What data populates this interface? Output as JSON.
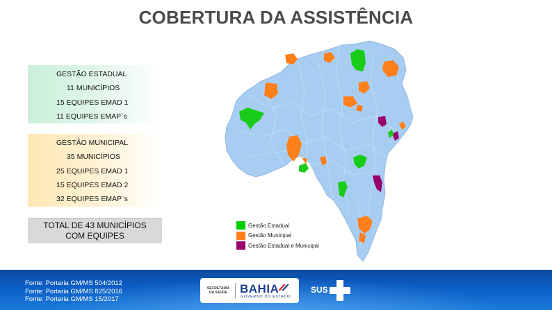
{
  "title": "COBERTURA DA ASSISTÊNCIA",
  "state_box": {
    "heading": "GESTÃO ESTADUAL",
    "lines": [
      "11 MUNICÍPIOS",
      "15 EQUIPES EMAD 1",
      "11 EQUIPES EMAP`s"
    ]
  },
  "municipal_box": {
    "heading": "GESTÃO MUNICIPAL",
    "lines": [
      "35 MUNICÍPIOS",
      "25 EQUIPES EMAD 1",
      "15 EQUIPES EMAD 2",
      "32 EQUIPES EMAP`s"
    ]
  },
  "total": {
    "line1": "TOTAL DE 43 MUNICÍPIOS",
    "line2": "COM EQUIPES"
  },
  "legend": [
    {
      "label": "Gestão Estadual",
      "color": "#00cc00"
    },
    {
      "label": "Gestão Municipal",
      "color": "#ff7f1a"
    },
    {
      "label": "Gestão Estadual e Municipal",
      "color": "#99006b"
    }
  ],
  "map_colors": {
    "base": "#a8cdf2",
    "state": "#19cc19",
    "municipal": "#ff7f1a",
    "both": "#99006b"
  },
  "sources": [
    "Fonte: Portaria GM/MS 504/2012",
    "Fonte: Portaria GM/MS 825/2016",
    "Fonte: Portaria GM/MS 15/2017"
  ],
  "logos": {
    "secretaria": "SECRETARIA DA SAÚDE",
    "bahia": "BAHIA",
    "governo": "GOVERNO DO ESTADO",
    "sus": "SUS"
  }
}
